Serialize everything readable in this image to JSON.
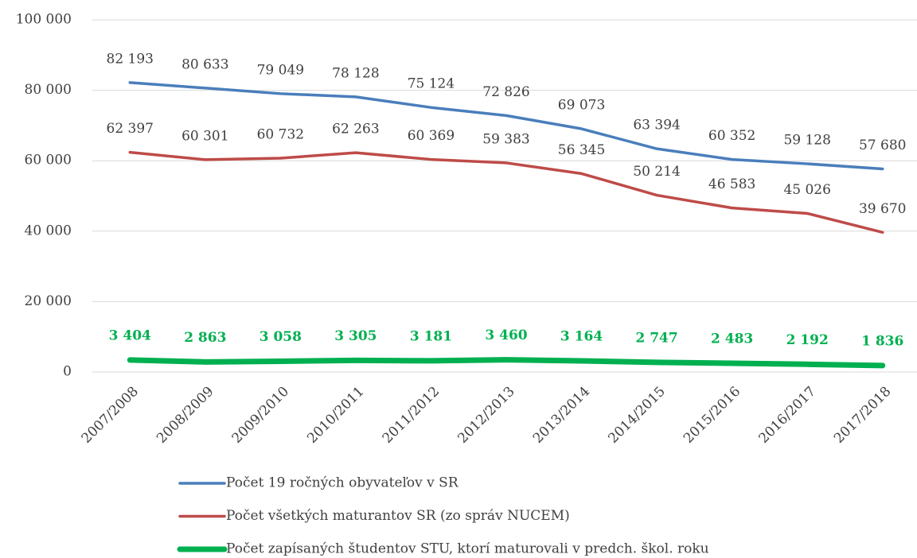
{
  "chart_data": {
    "type": "line",
    "categories": [
      "2007/2008",
      "2008/2009",
      "2009/2010",
      "2010/2011",
      "2011/2012",
      "2012/2013",
      "2013/2014",
      "2014/2015",
      "2015/2016",
      "2016/2017",
      "2017/2018"
    ],
    "series": [
      {
        "name": "Počet 19 ročných obyvateľov v SR",
        "color": "#4a7ebb",
        "values": [
          82193,
          80633,
          79049,
          78128,
          75124,
          72826,
          69073,
          63394,
          60352,
          59128,
          57680
        ],
        "value_labels": [
          "82 193",
          "80 633",
          "79 049",
          "78 128",
          "75 124",
          "72 826",
          "69 073",
          "63 394",
          "60 352",
          "59 128",
          "57 680"
        ]
      },
      {
        "name": "Počet všetkých maturantov SR (zo správ NUCEM)",
        "color": "#be4b48",
        "values": [
          62397,
          60301,
          60732,
          62263,
          60369,
          59383,
          56345,
          50214,
          46583,
          45026,
          39670
        ],
        "value_labels": [
          "62 397",
          "60 301",
          "60 732",
          "62 263",
          "60 369",
          "59 383",
          "56 345",
          "50 214",
          "46 583",
          "45 026",
          "39 670"
        ]
      },
      {
        "name": "Počet zapísaných študentov STU, ktorí maturovali v predch. škol. roku",
        "color": "#00b050",
        "values": [
          3404,
          2863,
          3058,
          3305,
          3181,
          3460,
          3164,
          2747,
          2483,
          2192,
          1836
        ],
        "value_labels": [
          "3 404",
          "2 863",
          "3 058",
          "3 305",
          "3 181",
          "3 460",
          "3 164",
          "2 747",
          "2 483",
          "2 192",
          "1 836"
        ]
      }
    ],
    "ylim": [
      0,
      100000
    ],
    "yticks": [
      0,
      {
        "value": 20000,
        "label": "20 000"
      },
      {
        "value": 40000,
        "label": "40 000"
      },
      {
        "value": 60000,
        "label": "60 000"
      },
      {
        "value": 80000,
        "label": "80 000"
      },
      {
        "value": 100000,
        "label": "100 000"
      }
    ],
    "grid": true
  }
}
